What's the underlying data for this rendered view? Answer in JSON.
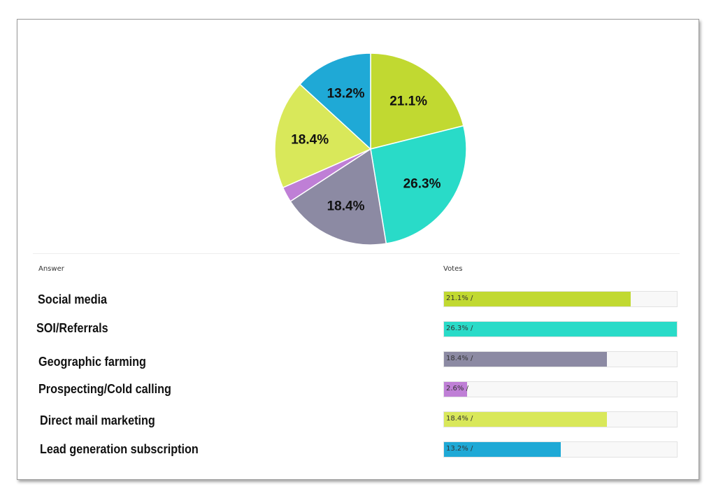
{
  "table": {
    "answer_header": "Answer",
    "votes_header": "Votes"
  },
  "chart_data": {
    "type": "pie",
    "title": "",
    "categories": [
      "Social media",
      "SOI/Referrals",
      "Geographic farming",
      "Prospecting/Cold calling",
      "Direct mail marketing",
      "Lead generation subscription"
    ],
    "values": [
      21.1,
      26.3,
      18.4,
      2.6,
      18.4,
      13.2
    ],
    "slice_labels": [
      "21.1%",
      "26.3%",
      "18.4%",
      "",
      "18.4%",
      "13.2%"
    ],
    "bar_labels": [
      "21.1% /",
      "26.3% /",
      "18.4% /",
      "2.6% /",
      "18.4% /",
      "13.2% /"
    ],
    "colors": [
      "#c1d931",
      "#29dbc8",
      "#8c8aa3",
      "#bf7fd6",
      "#d9e85a",
      "#1fa9d6"
    ],
    "start": "12 o'clock",
    "direction": "clockwise",
    "bar_max": 26.3
  }
}
